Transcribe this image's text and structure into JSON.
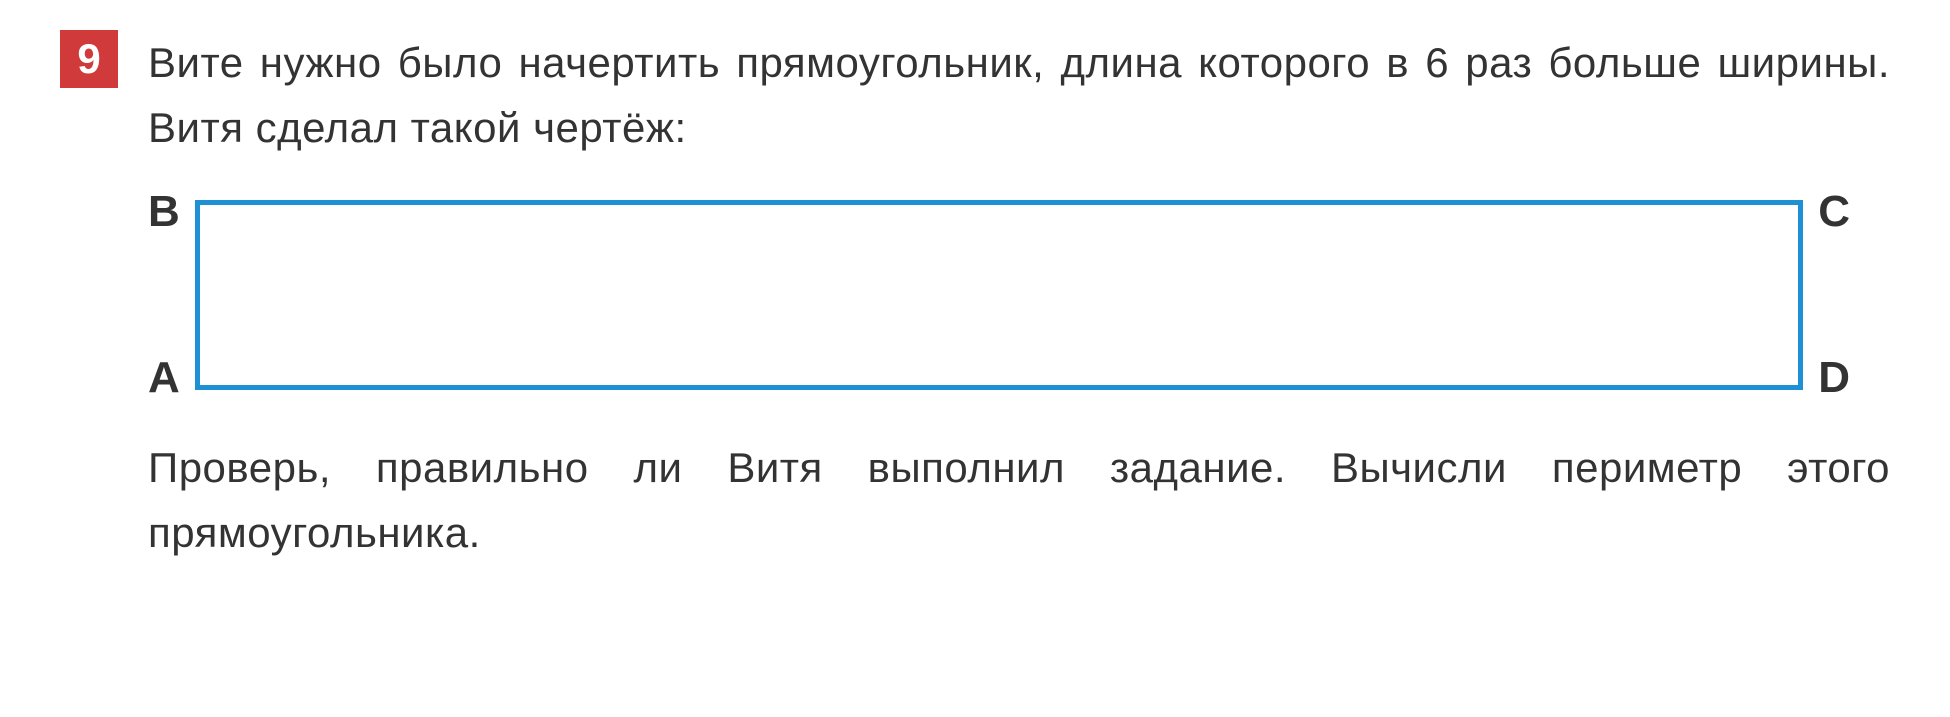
{
  "problem": {
    "number": "9",
    "badge_color": "#d13a3a",
    "text_line1": "Вите нужно было начертить прямоугольник, длина которого в 6 раз больше ширины. Витя сделал такой чертёж:",
    "text_line2": "Проверь, правильно ли Витя выполнил задание. Вычисли периметр этого прямоугольника."
  },
  "diagram": {
    "type": "rectangle",
    "vertices": {
      "top_left": "B",
      "top_right": "C",
      "bottom_left": "A",
      "bottom_right": "D"
    },
    "border_color": "#1e90d4",
    "border_width": 5,
    "background_color": "#ffffff",
    "width_ratio": 6,
    "height_ratio": 1
  },
  "styling": {
    "body_background": "#ffffff",
    "text_color": "#333333",
    "text_fontsize": 42,
    "label_fontsize": 44,
    "badge_text_color": "#ffffff",
    "badge_fontsize": 42
  }
}
